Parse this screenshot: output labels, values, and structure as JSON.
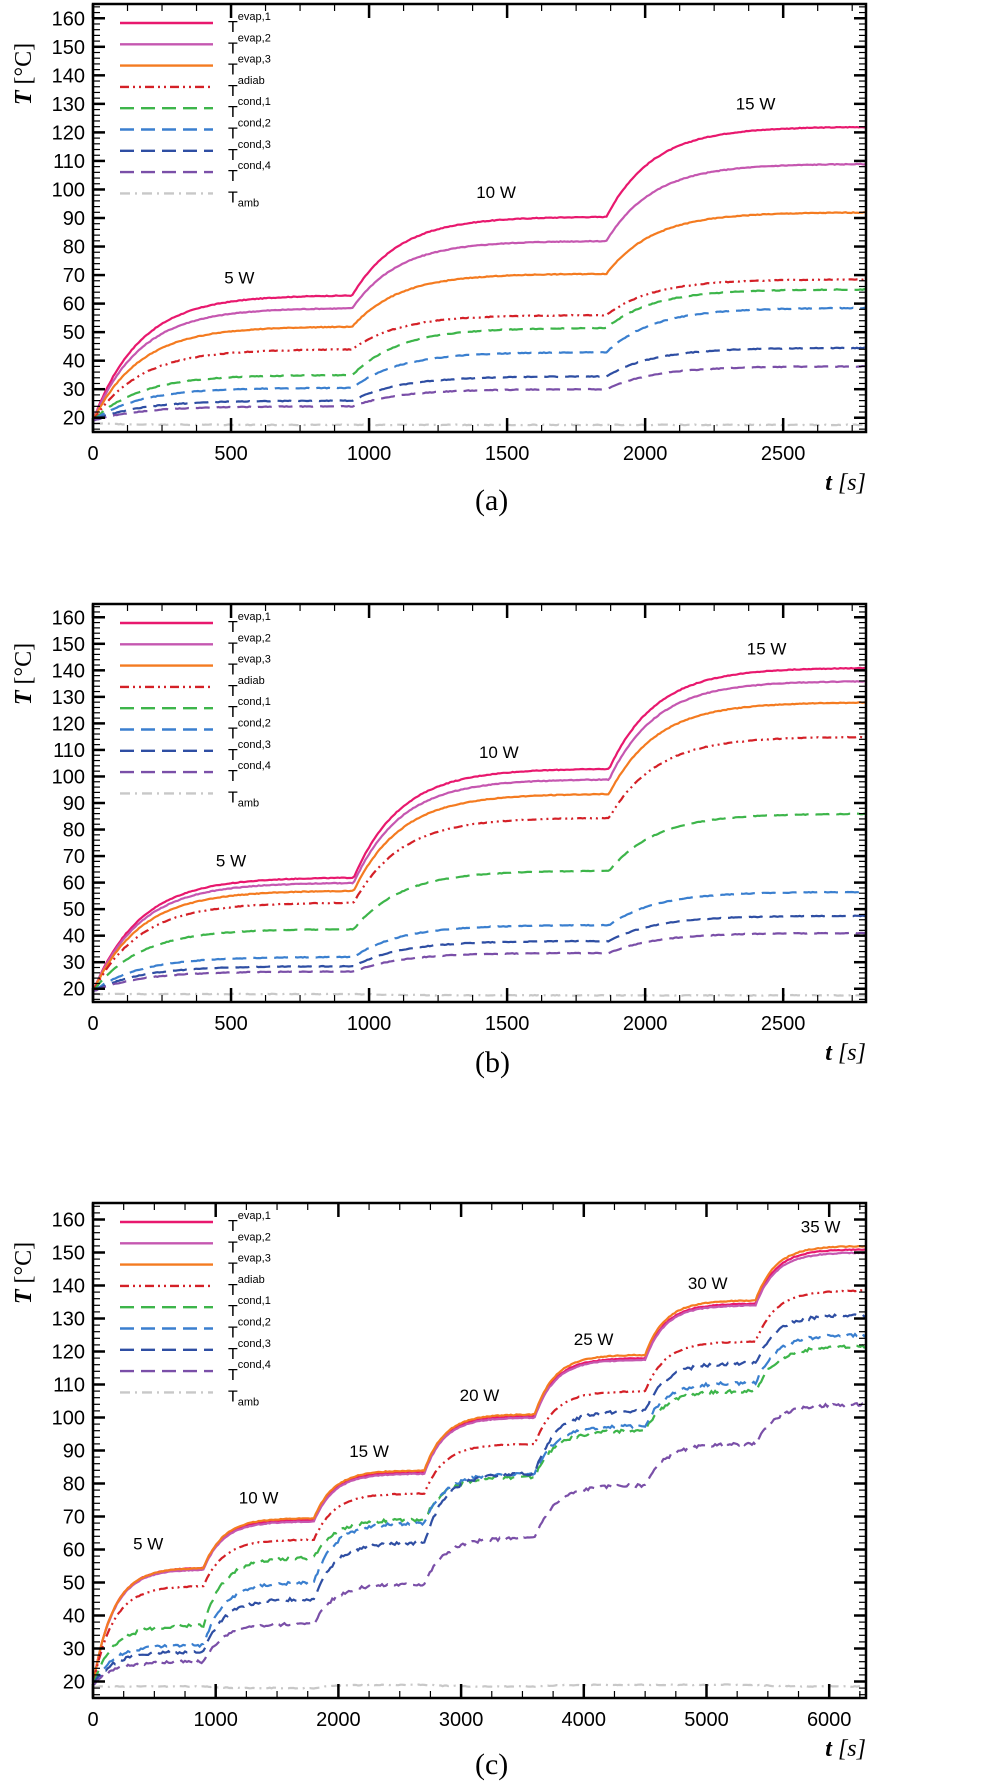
{
  "figure": {
    "captions": [
      "(a)",
      "(b)",
      "(c)"
    ]
  },
  "chart_data": [
    {
      "type": "line",
      "panel": "(a)",
      "xlabel": "t",
      "xunit": "[s]",
      "ylabel": "T",
      "yunit": "[°C]",
      "xlim": [
        0,
        2800
      ],
      "ylim": [
        15,
        165
      ],
      "xticks": [
        0,
        500,
        1000,
        1500,
        2000,
        2500
      ],
      "yticks": [
        20,
        30,
        40,
        50,
        60,
        70,
        80,
        90,
        100,
        110,
        120,
        130,
        140,
        150,
        160
      ],
      "legend_position": "top-left",
      "step_times": [
        0,
        940,
        1860
      ],
      "annotations": [
        {
          "text": "5 W",
          "x": 530,
          "y": 67
        },
        {
          "text": "10 W",
          "x": 1460,
          "y": 97
        },
        {
          "text": "15 W",
          "x": 2400,
          "y": 128
        }
      ],
      "series": [
        {
          "name": "T",
          "sub": "evap,1",
          "style": "solid",
          "color": "#e8186e",
          "start": 19,
          "plateaus": [
            63,
            90.5,
            122
          ]
        },
        {
          "name": "T",
          "sub": "evap,2",
          "style": "solid",
          "color": "#c557b0",
          "start": 19,
          "plateaus": [
            58.5,
            82,
            109
          ]
        },
        {
          "name": "T",
          "sub": "evap,3",
          "style": "solid",
          "color": "#f47b20",
          "start": 19,
          "plateaus": [
            52,
            70.5,
            92
          ]
        },
        {
          "name": "T",
          "sub": "adiab",
          "style": "dashdotdot",
          "color": "#d42027",
          "start": 19,
          "plateaus": [
            44,
            56,
            68.5
          ]
        },
        {
          "name": "T",
          "sub": "cond,1",
          "style": "dash",
          "color": "#3db54a",
          "start": 19,
          "plateaus": [
            35,
            51.5,
            65
          ]
        },
        {
          "name": "T",
          "sub": "cond,2",
          "style": "dash",
          "color": "#3a7fcf",
          "start": 19,
          "plateaus": [
            30.5,
            43,
            58.5
          ]
        },
        {
          "name": "T",
          "sub": "cond,3",
          "style": "dash",
          "color": "#2e4ea3",
          "start": 19,
          "plateaus": [
            26,
            34.5,
            44.5
          ]
        },
        {
          "name": "T",
          "sub": "cond,4",
          "style": "dash",
          "color": "#7a4fa8",
          "start": 19,
          "plateaus": [
            24,
            30,
            38
          ]
        },
        {
          "name": "T",
          "sub": "amb",
          "style": "dashdot",
          "color": "#c8c8c8",
          "start": 18,
          "plateaus": [
            17.5,
            17.5,
            17.5
          ]
        }
      ]
    },
    {
      "type": "line",
      "panel": "(b)",
      "xlabel": "t",
      "xunit": "[s]",
      "ylabel": "T",
      "yunit": "[°C]",
      "xlim": [
        0,
        2800
      ],
      "ylim": [
        15,
        165
      ],
      "xticks": [
        0,
        500,
        1000,
        1500,
        2000,
        2500
      ],
      "yticks": [
        20,
        30,
        40,
        50,
        60,
        70,
        80,
        90,
        100,
        110,
        120,
        130,
        140,
        150,
        160
      ],
      "legend_position": "top-left",
      "step_times": [
        0,
        945,
        1870
      ],
      "annotations": [
        {
          "text": "5 W",
          "x": 500,
          "y": 66
        },
        {
          "text": "10 W",
          "x": 1470,
          "y": 107
        },
        {
          "text": "15 W",
          "x": 2440,
          "y": 146
        }
      ],
      "series": [
        {
          "name": "T",
          "sub": "evap,1",
          "style": "solid",
          "color": "#e8186e",
          "start": 19,
          "plateaus": [
            62,
            103,
            141
          ]
        },
        {
          "name": "T",
          "sub": "evap,2",
          "style": "solid",
          "color": "#c557b0",
          "start": 19,
          "plateaus": [
            60,
            99,
            136
          ]
        },
        {
          "name": "T",
          "sub": "evap,3",
          "style": "solid",
          "color": "#f47b20",
          "start": 19,
          "plateaus": [
            57,
            93.5,
            128
          ]
        },
        {
          "name": "T",
          "sub": "adiab",
          "style": "dashdotdot",
          "color": "#d42027",
          "start": 19,
          "plateaus": [
            52.5,
            84.5,
            115
          ]
        },
        {
          "name": "T",
          "sub": "cond,1",
          "style": "dash",
          "color": "#3db54a",
          "start": 19,
          "plateaus": [
            42.5,
            64.5,
            86
          ]
        },
        {
          "name": "T",
          "sub": "cond,2",
          "style": "dash",
          "color": "#3a7fcf",
          "start": 19,
          "plateaus": [
            32,
            44,
            56.5
          ]
        },
        {
          "name": "T",
          "sub": "cond,3",
          "style": "dash",
          "color": "#2e4ea3",
          "start": 19,
          "plateaus": [
            28.5,
            38,
            47.5
          ]
        },
        {
          "name": "T",
          "sub": "cond,4",
          "style": "dash",
          "color": "#7a4fa8",
          "start": 19,
          "plateaus": [
            26.5,
            33.5,
            41
          ]
        },
        {
          "name": "T",
          "sub": "amb",
          "style": "dashdot",
          "color": "#c8c8c8",
          "start": 18,
          "plateaus": [
            18,
            17.5,
            17.5
          ]
        }
      ]
    },
    {
      "type": "line",
      "panel": "(c)",
      "xlabel": "t",
      "xunit": "[s]",
      "ylabel": "T",
      "yunit": "[°C]",
      "xlim": [
        0,
        6300
      ],
      "ylim": [
        15,
        165
      ],
      "xticks": [
        0,
        1000,
        2000,
        3000,
        4000,
        5000,
        6000
      ],
      "yticks": [
        20,
        30,
        40,
        50,
        60,
        70,
        80,
        90,
        100,
        110,
        120,
        130,
        140,
        150,
        160
      ],
      "legend_position": "top-left",
      "step_times": [
        0,
        900,
        1800,
        2700,
        3600,
        4500,
        5400
      ],
      "annotations": [
        {
          "text": "5 W",
          "x": 450,
          "y": 60
        },
        {
          "text": "10 W",
          "x": 1350,
          "y": 74
        },
        {
          "text": "15 W",
          "x": 2250,
          "y": 88
        },
        {
          "text": "20 W",
          "x": 3150,
          "y": 105
        },
        {
          "text": "25 W",
          "x": 4080,
          "y": 122
        },
        {
          "text": "30 W",
          "x": 5010,
          "y": 139
        },
        {
          "text": "35 W",
          "x": 5930,
          "y": 156
        }
      ],
      "series": [
        {
          "name": "T",
          "sub": "evap,1",
          "style": "solid",
          "color": "#e8186e",
          "start": 19,
          "plateaus": [
            54.5,
            69,
            83.5,
            100.5,
            118,
            134.5,
            151
          ]
        },
        {
          "name": "T",
          "sub": "evap,2",
          "style": "solid",
          "color": "#c557b0",
          "start": 19,
          "plateaus": [
            54,
            68.5,
            83,
            100,
            117.5,
            134,
            150
          ]
        },
        {
          "name": "T",
          "sub": "evap,3",
          "style": "solid",
          "color": "#f47b20",
          "start": 19,
          "plateaus": [
            54.5,
            69.5,
            84,
            101,
            119,
            135.5,
            152
          ]
        },
        {
          "name": "T",
          "sub": "adiab",
          "style": "dashdotdot",
          "color": "#d42027",
          "start": 19,
          "plateaus": [
            49,
            63,
            77,
            92,
            108,
            123,
            138.5
          ]
        },
        {
          "name": "T",
          "sub": "cond,1",
          "style": "dash",
          "color": "#3db54a",
          "start": 19,
          "plateaus": [
            37,
            57.5,
            69,
            82,
            96,
            108,
            121.5
          ]
        },
        {
          "name": "T",
          "sub": "cond,2",
          "style": "dash",
          "color": "#3a7fcf",
          "start": 19,
          "plateaus": [
            31,
            50,
            68,
            83,
            97.5,
            110.5,
            125
          ]
        },
        {
          "name": "T",
          "sub": "cond,3",
          "style": "dash",
          "color": "#2e4ea3",
          "start": 19,
          "plateaus": [
            29,
            45,
            62,
            83,
            102,
            116.5,
            131
          ]
        },
        {
          "name": "T",
          "sub": "cond,4",
          "style": "dash",
          "color": "#7a4fa8",
          "start": 19,
          "plateaus": [
            26,
            37.5,
            49.5,
            63.5,
            79.5,
            92,
            104
          ]
        },
        {
          "name": "T",
          "sub": "amb",
          "style": "dashdot",
          "color": "#c8c8c8",
          "start": 18.5,
          "plateaus": [
            18.5,
            18,
            19,
            18.5,
            19,
            19,
            18.5
          ]
        }
      ]
    }
  ]
}
